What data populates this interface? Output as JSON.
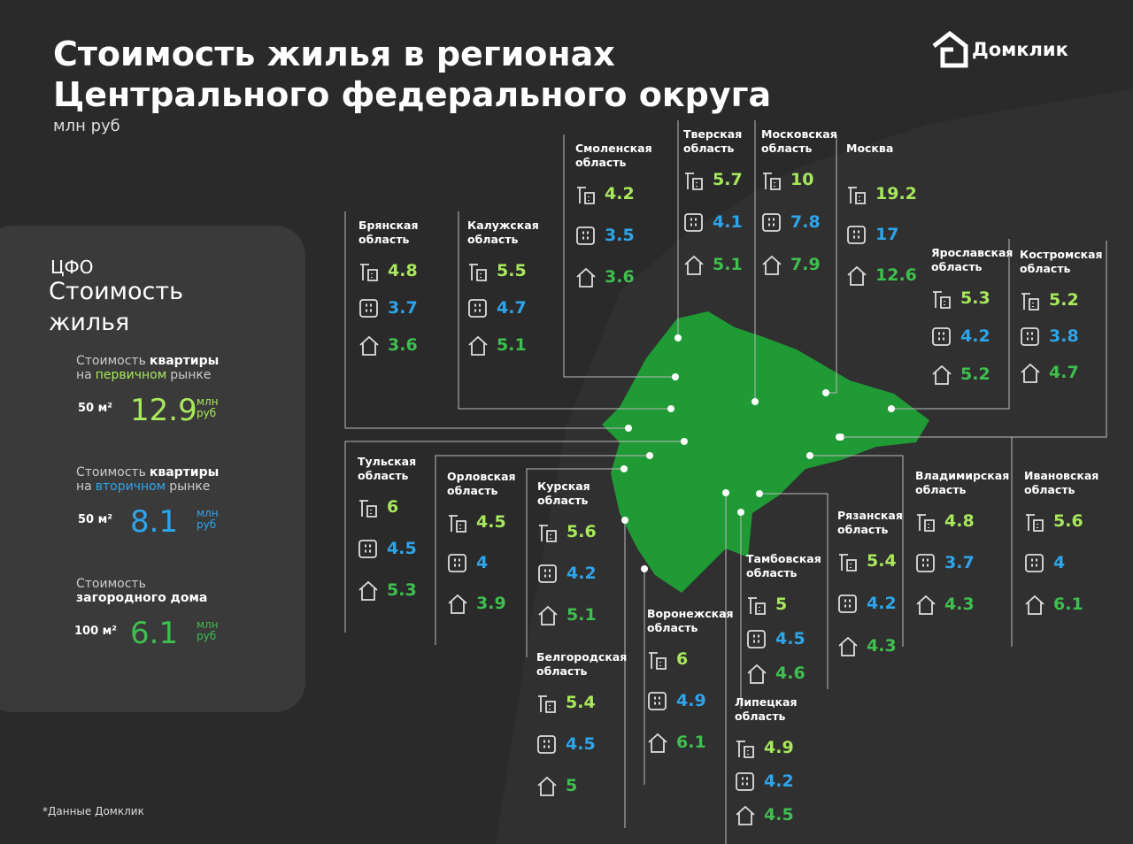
{
  "header": {
    "title_lines": [
      "Стоимость жилья в регионах",
      "Центрального федерального округа"
    ],
    "subtitle": "млн руб",
    "brand": "Домклик"
  },
  "summary": {
    "region": "ЦФО",
    "title": "Стоимость жилья",
    "items": [
      {
        "label_parts": [
          "Стоимость",
          "квартиры",
          "на",
          "первичном",
          "рынке"
        ],
        "area": "50 м²",
        "value": 12.9,
        "unit": "млн руб"
      },
      {
        "label_parts": [
          "Стоимость",
          "квартиры",
          "на",
          "вторичном",
          "рынке"
        ],
        "area": "50 м²",
        "value": 8.1,
        "unit": "млн руб"
      },
      {
        "label_parts": [
          "Стоимость",
          "загородного дома"
        ],
        "area": "100 м²",
        "value": 6.1,
        "unit": "млн руб"
      }
    ]
  },
  "regions": [
    {
      "name": "Брянская область",
      "values": [
        4.8,
        3.7,
        3.6
      ]
    },
    {
      "name": "Калужская область",
      "values": [
        5.5,
        4.7,
        5.1
      ]
    },
    {
      "name": "Смоленская область",
      "values": [
        4.2,
        3.5,
        3.6
      ]
    },
    {
      "name": "Тверская область",
      "values": [
        5.7,
        4.1,
        5.1
      ]
    },
    {
      "name": "Московская область",
      "values": [
        10,
        7.8,
        7.9
      ]
    },
    {
      "name": "Москва",
      "values": [
        19.2,
        17,
        12.6
      ]
    },
    {
      "name": "Ярославская область",
      "values": [
        5.3,
        4.2,
        5.2
      ]
    },
    {
      "name": "Костромская область",
      "values": [
        5.2,
        3.8,
        4.7
      ]
    },
    {
      "name": "Тульская область",
      "values": [
        6,
        4.5,
        5.3
      ]
    },
    {
      "name": "Орловская область",
      "values": [
        4.5,
        4,
        3.9
      ]
    },
    {
      "name": "Курская область",
      "values": [
        5.6,
        4.2,
        5.1
      ]
    },
    {
      "name": "Белгородская область",
      "values": [
        5.4,
        4.5,
        5
      ]
    },
    {
      "name": "Воронежская область",
      "values": [
        6,
        4.9,
        6.1
      ]
    },
    {
      "name": "Липецкая область",
      "values": [
        4.9,
        4.2,
        4.5
      ]
    },
    {
      "name": "Тамбовская область",
      "values": [
        5,
        4.5,
        4.6
      ]
    },
    {
      "name": "Рязанская область",
      "values": [
        5.4,
        4.2,
        4.3
      ]
    },
    {
      "name": "Владимирская область",
      "values": [
        4.8,
        3.7,
        4.3
      ]
    },
    {
      "name": "Ивановская область",
      "values": [
        5.6,
        4,
        6.1
      ]
    }
  ],
  "footnote": "*Данные Домклик"
}
